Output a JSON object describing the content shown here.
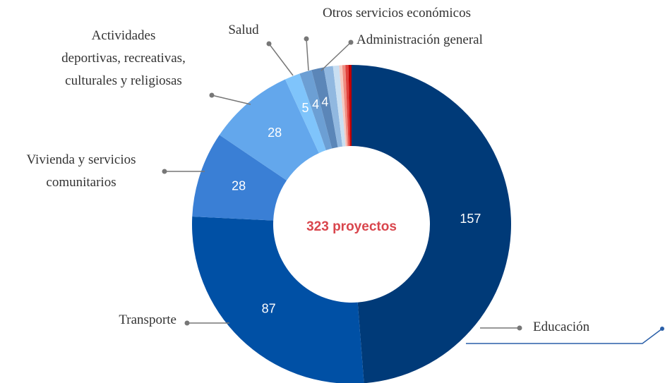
{
  "chart_data": {
    "type": "donut",
    "center_label": "323 proyectos",
    "categories": [
      "Educación",
      "Transporte",
      "Vivienda y servicios comunitarios",
      "Actividades deportivas, recreativas, culturales y religiosas",
      "Salud",
      "Otros servicios económicos",
      "Administración general",
      null,
      null,
      null,
      null,
      null,
      null
    ],
    "values": [
      157,
      87,
      28,
      28,
      5,
      4,
      4,
      3,
      2,
      1,
      1,
      1,
      1
    ],
    "colors": [
      "#003a78",
      "#0050a5",
      "#3a7fd5",
      "#63a7ec",
      "#7fc4fb",
      "#6c9fd4",
      "#5b86b8",
      "#91b8e0",
      "#c9dff2",
      "#f6c8c0",
      "#f08c80",
      "#e0403c",
      "#c00000"
    ]
  }
}
